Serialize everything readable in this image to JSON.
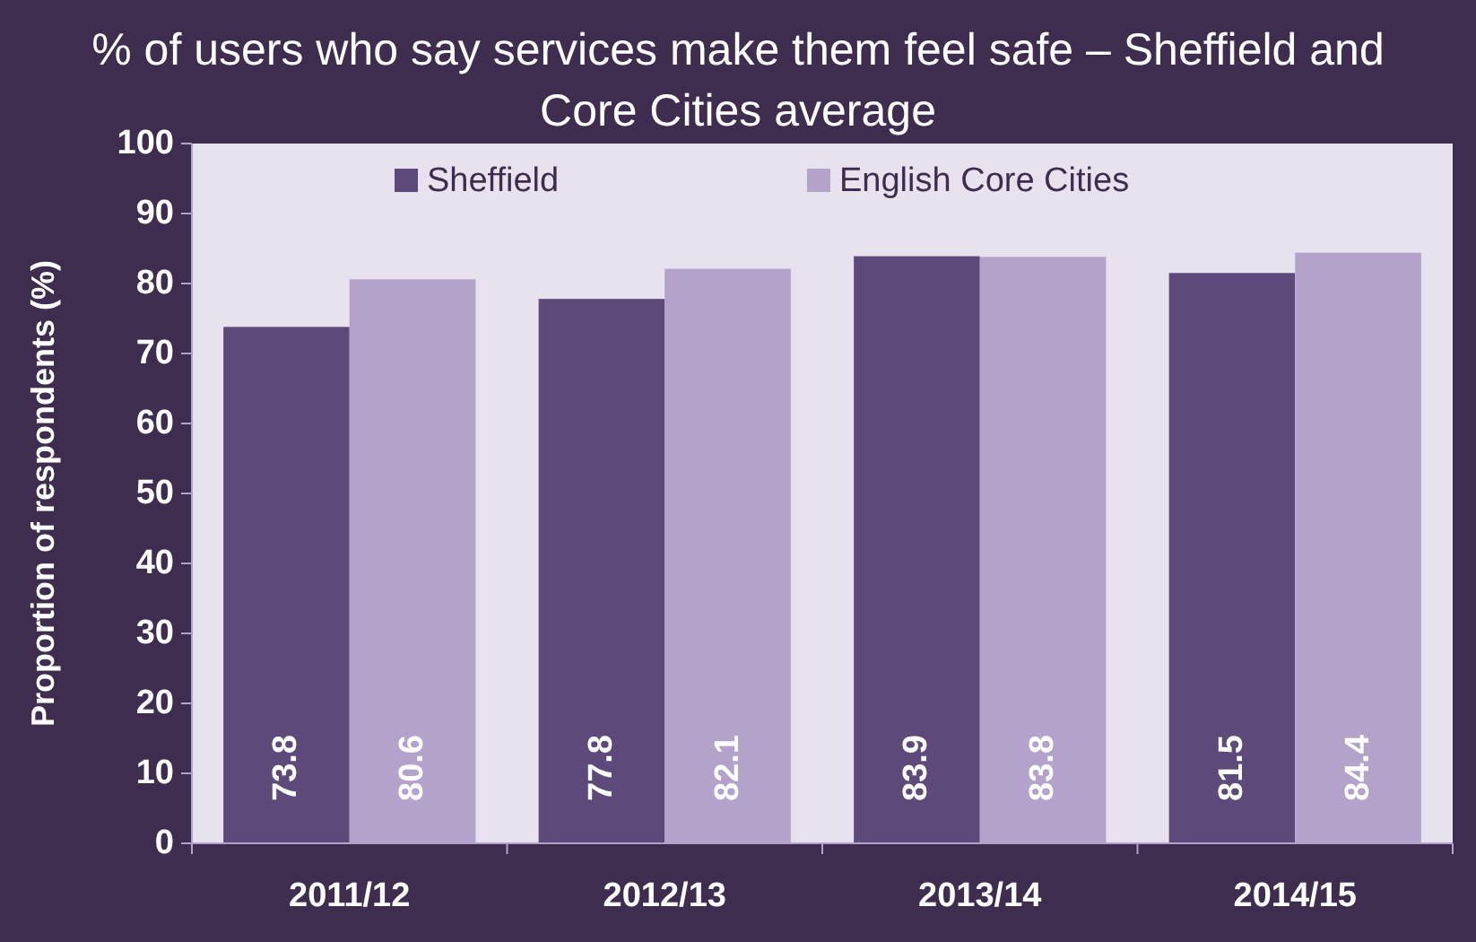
{
  "chart_data": {
    "type": "bar",
    "title": "% of users who say services make them feel safe – Sheffield and Core Cities average",
    "ylabel": "Proportion of respondents (%)",
    "categories": [
      "2011/12",
      "2012/13",
      "2013/14",
      "2014/15"
    ],
    "series": [
      {
        "name": "Sheffield",
        "color": "#5e4a7a",
        "values": [
          73.8,
          77.8,
          83.9,
          81.5
        ]
      },
      {
        "name": "English Core Cities",
        "color": "#b3a2ca",
        "values": [
          80.6,
          82.1,
          83.8,
          84.4
        ]
      }
    ],
    "ylim": [
      0,
      100
    ],
    "yticks": [
      0,
      10,
      20,
      30,
      40,
      50,
      60,
      70,
      80,
      90,
      100
    ],
    "grid": false,
    "legend": "top",
    "data_labels": true
  }
}
